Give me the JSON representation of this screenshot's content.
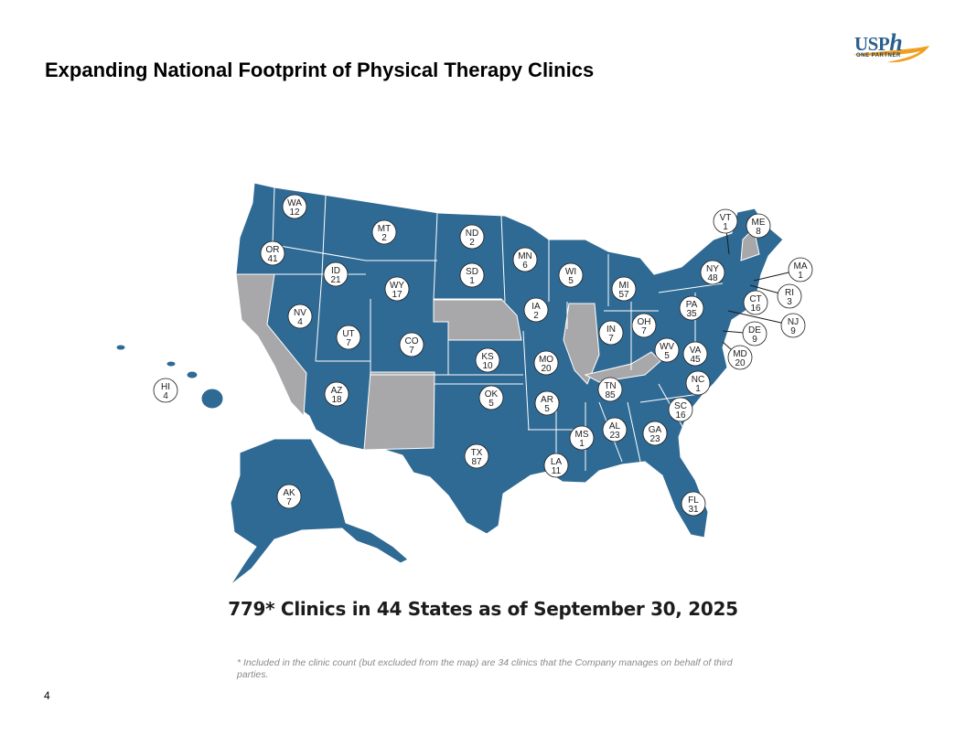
{
  "slide": {
    "title": "Expanding National Footprint of Physical Therapy Clinics",
    "page_number": "4"
  },
  "logo": {
    "brand_text": "USP",
    "brand_h": "h",
    "tagline": "ONE PARTNER"
  },
  "summary": {
    "headline": "779* Clinics in 44 States as of September 30, 2025"
  },
  "footnote": "* Included in the clinic count (but excluded from the map) are 34 clinics that the Company manages on behalf of third parties.",
  "colors": {
    "served_state": "#2f6a94",
    "unserved_state": "#a8a8aa",
    "border": "#ffffff",
    "accent": "#f0a020"
  },
  "states": [
    {
      "abbr": "WA",
      "clinics": "12"
    },
    {
      "abbr": "OR",
      "clinics": "41"
    },
    {
      "abbr": "ID",
      "clinics": "21"
    },
    {
      "abbr": "MT",
      "clinics": "2"
    },
    {
      "abbr": "ND",
      "clinics": "2"
    },
    {
      "abbr": "MN",
      "clinics": "6"
    },
    {
      "abbr": "WI",
      "clinics": "5"
    },
    {
      "abbr": "MI",
      "clinics": "57"
    },
    {
      "abbr": "SD",
      "clinics": "1"
    },
    {
      "abbr": "WY",
      "clinics": "17"
    },
    {
      "abbr": "NV",
      "clinics": "4"
    },
    {
      "abbr": "UT",
      "clinics": "7"
    },
    {
      "abbr": "CO",
      "clinics": "7"
    },
    {
      "abbr": "IA",
      "clinics": "2"
    },
    {
      "abbr": "KS",
      "clinics": "10"
    },
    {
      "abbr": "MO",
      "clinics": "20"
    },
    {
      "abbr": "IN",
      "clinics": "7"
    },
    {
      "abbr": "OH",
      "clinics": "7"
    },
    {
      "abbr": "WV",
      "clinics": "5"
    },
    {
      "abbr": "VA",
      "clinics": "45"
    },
    {
      "abbr": "PA",
      "clinics": "35"
    },
    {
      "abbr": "NY",
      "clinics": "48"
    },
    {
      "abbr": "VT",
      "clinics": "1"
    },
    {
      "abbr": "ME",
      "clinics": "8"
    },
    {
      "abbr": "MA",
      "clinics": "1"
    },
    {
      "abbr": "RI",
      "clinics": "3"
    },
    {
      "abbr": "CT",
      "clinics": "16"
    },
    {
      "abbr": "NJ",
      "clinics": "9"
    },
    {
      "abbr": "DE",
      "clinics": "9"
    },
    {
      "abbr": "MD",
      "clinics": "20"
    },
    {
      "abbr": "AZ",
      "clinics": "18"
    },
    {
      "abbr": "OK",
      "clinics": "5"
    },
    {
      "abbr": "AR",
      "clinics": "5"
    },
    {
      "abbr": "TN",
      "clinics": "85"
    },
    {
      "abbr": "NC",
      "clinics": "1"
    },
    {
      "abbr": "SC",
      "clinics": "16"
    },
    {
      "abbr": "GA",
      "clinics": "23"
    },
    {
      "abbr": "AL",
      "clinics": "23"
    },
    {
      "abbr": "MS",
      "clinics": "1"
    },
    {
      "abbr": "TX",
      "clinics": "87"
    },
    {
      "abbr": "LA",
      "clinics": "11"
    },
    {
      "abbr": "FL",
      "clinics": "31"
    },
    {
      "abbr": "AK",
      "clinics": "7"
    },
    {
      "abbr": "HI",
      "clinics": "4"
    }
  ]
}
